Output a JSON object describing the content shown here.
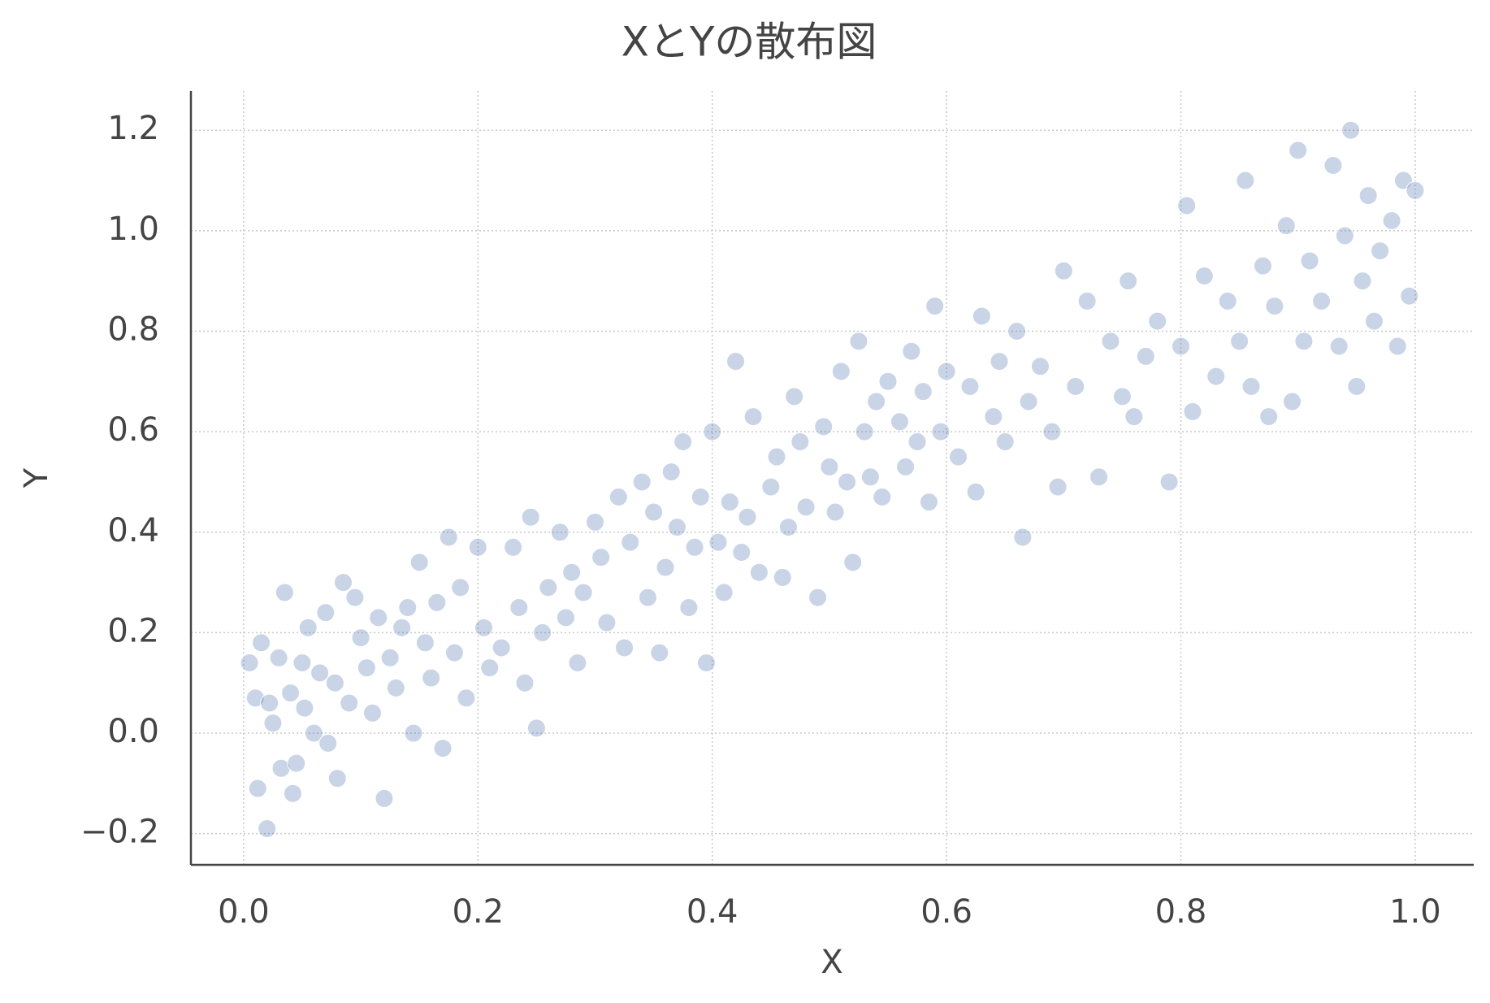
{
  "chart_data": {
    "type": "scatter",
    "title": "XとYの散布図",
    "x_label": "X",
    "y_label": "Y",
    "color": "#4c72b0",
    "grid": true,
    "xlim": [
      -0.045,
      1.05
    ],
    "ylim": [
      -0.262,
      1.278
    ],
    "xticks": [
      {
        "value": 0,
        "label": "0.0"
      },
      0.2,
      0.4,
      0.6,
      0.8,
      {
        "value": 1,
        "label": "1.0"
      }
    ],
    "yticks": [
      {
        "value": -0.2,
        "label": "−0.2"
      },
      {
        "value": 0,
        "label": "0.0"
      },
      0.2,
      0.4,
      0.6,
      0.8,
      {
        "value": 1,
        "label": "1.0"
      },
      1.2
    ],
    "x": [
      0.005,
      0.01,
      0.012,
      0.015,
      0.02,
      0.022,
      0.025,
      0.03,
      0.032,
      0.035,
      0.04,
      0.042,
      0.045,
      0.05,
      0.052,
      0.055,
      0.06,
      0.065,
      0.07,
      0.072,
      0.078,
      0.08,
      0.085,
      0.09,
      0.095,
      0.1,
      0.105,
      0.11,
      0.115,
      0.12,
      0.125,
      0.13,
      0.135,
      0.14,
      0.145,
      0.15,
      0.155,
      0.16,
      0.165,
      0.17,
      0.175,
      0.18,
      0.185,
      0.19,
      0.2,
      0.205,
      0.21,
      0.22,
      0.23,
      0.235,
      0.24,
      0.245,
      0.25,
      0.255,
      0.26,
      0.27,
      0.275,
      0.28,
      0.285,
      0.29,
      0.3,
      0.305,
      0.31,
      0.32,
      0.325,
      0.33,
      0.34,
      0.345,
      0.35,
      0.355,
      0.36,
      0.365,
      0.37,
      0.375,
      0.38,
      0.385,
      0.39,
      0.395,
      0.4,
      0.405,
      0.41,
      0.415,
      0.42,
      0.425,
      0.43,
      0.435,
      0.44,
      0.45,
      0.455,
      0.46,
      0.465,
      0.47,
      0.475,
      0.48,
      0.49,
      0.495,
      0.5,
      0.505,
      0.51,
      0.515,
      0.52,
      0.525,
      0.53,
      0.535,
      0.54,
      0.545,
      0.55,
      0.56,
      0.565,
      0.57,
      0.575,
      0.58,
      0.585,
      0.59,
      0.595,
      0.6,
      0.61,
      0.62,
      0.625,
      0.63,
      0.64,
      0.645,
      0.65,
      0.66,
      0.665,
      0.67,
      0.68,
      0.69,
      0.695,
      0.7,
      0.71,
      0.72,
      0.73,
      0.74,
      0.75,
      0.755,
      0.76,
      0.77,
      0.78,
      0.79,
      0.8,
      0.805,
      0.81,
      0.82,
      0.83,
      0.84,
      0.85,
      0.855,
      0.86,
      0.87,
      0.875,
      0.88,
      0.89,
      0.895,
      0.9,
      0.905,
      0.91,
      0.92,
      0.93,
      0.935,
      0.94,
      0.945,
      0.95,
      0.955,
      0.96,
      0.965,
      0.97,
      0.98,
      0.985,
      0.99,
      0.995,
      1.0
    ],
    "y": [
      0.14,
      0.07,
      -0.11,
      0.18,
      -0.19,
      0.06,
      0.02,
      0.15,
      -0.07,
      0.28,
      0.08,
      -0.12,
      -0.06,
      0.14,
      0.05,
      0.21,
      0.0,
      0.12,
      0.24,
      -0.02,
      0.1,
      -0.09,
      0.3,
      0.06,
      0.27,
      0.19,
      0.13,
      0.04,
      0.23,
      -0.13,
      0.15,
      0.09,
      0.21,
      0.25,
      0.0,
      0.34,
      0.18,
      0.11,
      0.26,
      -0.03,
      0.39,
      0.16,
      0.29,
      0.07,
      0.37,
      0.21,
      0.13,
      0.17,
      0.37,
      0.25,
      0.1,
      0.43,
      0.01,
      0.2,
      0.29,
      0.4,
      0.23,
      0.32,
      0.14,
      0.28,
      0.42,
      0.35,
      0.22,
      0.47,
      0.17,
      0.38,
      0.5,
      0.27,
      0.44,
      0.16,
      0.33,
      0.52,
      0.41,
      0.58,
      0.25,
      0.37,
      0.47,
      0.14,
      0.6,
      0.38,
      0.28,
      0.46,
      0.74,
      0.36,
      0.43,
      0.63,
      0.32,
      0.49,
      0.55,
      0.31,
      0.41,
      0.67,
      0.58,
      0.45,
      0.27,
      0.61,
      0.53,
      0.44,
      0.72,
      0.5,
      0.34,
      0.78,
      0.6,
      0.51,
      0.66,
      0.47,
      0.7,
      0.62,
      0.53,
      0.76,
      0.58,
      0.68,
      0.46,
      0.85,
      0.6,
      0.72,
      0.55,
      0.69,
      0.48,
      0.83,
      0.63,
      0.74,
      0.58,
      0.8,
      0.39,
      0.66,
      0.73,
      0.6,
      0.49,
      0.92,
      0.69,
      0.86,
      0.51,
      0.78,
      0.67,
      0.9,
      0.63,
      0.75,
      0.82,
      0.5,
      0.77,
      1.05,
      0.64,
      0.91,
      0.71,
      0.86,
      0.78,
      1.1,
      0.69,
      0.93,
      0.63,
      0.85,
      1.01,
      0.66,
      1.16,
      0.78,
      0.94,
      0.86,
      1.13,
      0.77,
      0.99,
      1.2,
      0.69,
      0.9,
      1.07,
      0.82,
      0.96,
      1.02,
      0.77,
      1.1,
      0.87,
      1.08
    ]
  }
}
